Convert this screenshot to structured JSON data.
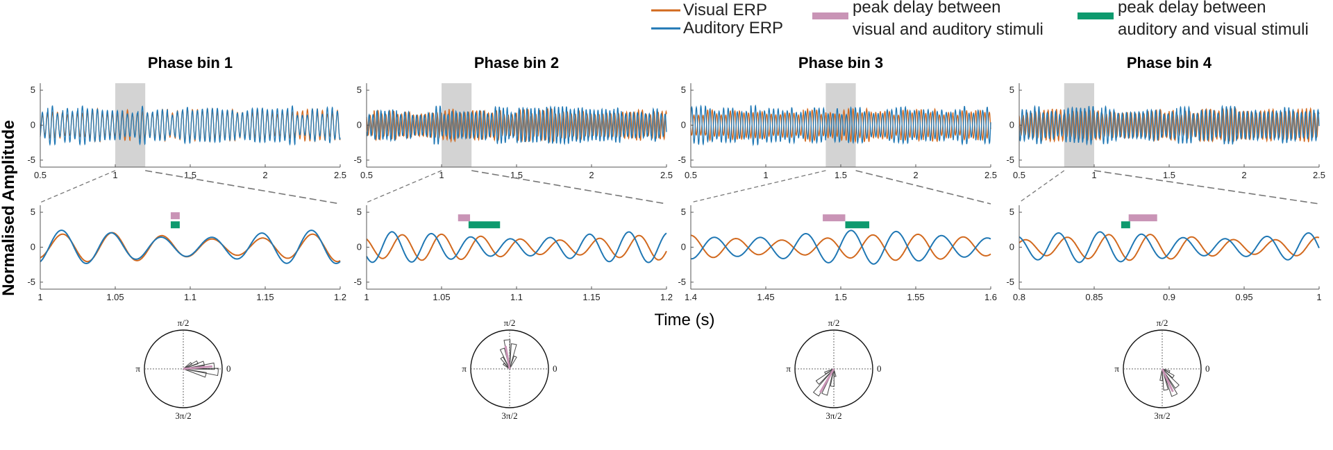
{
  "legend": {
    "visual": "Visual ERP",
    "auditory": "Auditory ERP",
    "pink_line1": "peak delay between",
    "pink_line2": "visual and auditory stimuli",
    "green_line1": "peak delay between",
    "green_line2": "auditory and visual stimuli"
  },
  "ylabel": "Normalised Amplitude",
  "xlabel": "Time (s)",
  "colors": {
    "visual": "#D2691E",
    "auditory": "#1F77B4",
    "pink": "#C994B6",
    "green": "#0E9A6E",
    "shade": "#D3D3D3",
    "zoom_line": "#777777"
  },
  "chart_data": [
    {
      "type": "line",
      "title": "Phase bin 1",
      "top": {
        "xlim": [
          0.5,
          2.5
        ],
        "ylim": [
          -6,
          6
        ],
        "xticks": [
          "0.5",
          "1",
          "1.5",
          "2",
          "2.5"
        ],
        "xtick_values": [
          0.5,
          1,
          1.5,
          2,
          2.5
        ],
        "yticks": [
          "5",
          "0",
          "-5"
        ],
        "ytick_values": [
          5,
          0,
          -5
        ],
        "highlight_range": [
          1.0,
          1.2
        ]
      },
      "bottom": {
        "xlim": [
          1.0,
          1.2
        ],
        "ylim": [
          -6,
          6
        ],
        "xticks": [
          "1",
          "1.05",
          "1.1",
          "1.15",
          "1.2"
        ],
        "xtick_values": [
          1,
          1.05,
          1.1,
          1.15,
          1.2
        ],
        "yticks": [
          "5",
          "0",
          "-5"
        ],
        "ytick_values": [
          5,
          0,
          -5
        ],
        "freq_hz": 30,
        "series": [
          {
            "name": "Visual ERP",
            "amplitude": 1.9,
            "phase_rad": -1.2
          },
          {
            "name": "Auditory ERP",
            "amplitude": 2.2,
            "phase_rad": -1.1
          }
        ],
        "peak_delay_visual_auditory": {
          "start": 1.087,
          "end": 1.093,
          "y": 4.5
        },
        "peak_delay_auditory_visual": {
          "start": 1.087,
          "end": 1.093,
          "y": 3.2
        }
      },
      "polar": {
        "tick_labels": [
          "π/2",
          "π",
          "0",
          "3π/2"
        ],
        "rose_angles_deg": [
          -15,
          -5,
          5,
          15,
          25,
          35
        ],
        "rose_lengths": [
          0.6,
          0.9,
          0.8,
          0.55,
          0.4,
          0.25
        ],
        "mean_angle_deg": 5,
        "mean_length": 0.75
      }
    },
    {
      "type": "line",
      "title": "Phase bin 2",
      "top": {
        "xlim": [
          0.5,
          2.5
        ],
        "ylim": [
          -6,
          6
        ],
        "xticks": [
          "0.5",
          "1",
          "1.5",
          "2",
          "2.5"
        ],
        "xtick_values": [
          0.5,
          1,
          1.5,
          2,
          2.5
        ],
        "yticks": [
          "5",
          "0",
          "-5"
        ],
        "ytick_values": [
          5,
          0,
          -5
        ],
        "highlight_range": [
          1.0,
          1.2
        ]
      },
      "bottom": {
        "xlim": [
          1.0,
          1.2
        ],
        "ylim": [
          -6,
          6
        ],
        "xticks": [
          "1",
          "1.05",
          "1.1",
          "1.15",
          "1.2"
        ],
        "xtick_values": [
          1,
          1.05,
          1.1,
          1.15,
          1.2
        ],
        "yticks": [
          "5",
          "0",
          "-5"
        ],
        "ytick_values": [
          5,
          0,
          -5
        ],
        "freq_hz": 38,
        "series": [
          {
            "name": "Visual ERP",
            "amplitude": 1.7,
            "phase_rad": 2.2
          },
          {
            "name": "Auditory ERP",
            "amplitude": 2.0,
            "phase_rad": 3.8
          }
        ],
        "peak_delay_visual_auditory": {
          "start": 1.061,
          "end": 1.069,
          "y": 4.2
        },
        "peak_delay_auditory_visual": {
          "start": 1.068,
          "end": 1.089,
          "y": 3.2
        }
      },
      "polar": {
        "tick_labels": [
          "π/2",
          "π",
          "0",
          "3π/2"
        ],
        "rose_angles_deg": [
          65,
          80,
          95,
          110,
          125,
          140
        ],
        "rose_lengths": [
          0.35,
          0.65,
          0.75,
          0.55,
          0.35,
          0.2
        ],
        "mean_angle_deg": 100,
        "mean_length": 0.6
      }
    },
    {
      "type": "line",
      "title": "Phase bin 3",
      "top": {
        "xlim": [
          0.5,
          2.5
        ],
        "ylim": [
          -6,
          6
        ],
        "xticks": [
          "0.5",
          "1",
          "1.5",
          "2",
          "2.5"
        ],
        "xtick_values": [
          0.5,
          1,
          1.5,
          2,
          2.5
        ],
        "yticks": [
          "5",
          "0",
          "-5"
        ],
        "ytick_values": [
          5,
          0,
          -5
        ],
        "highlight_range": [
          1.4,
          1.6
        ]
      },
      "bottom": {
        "xlim": [
          1.4,
          1.6
        ],
        "ylim": [
          -6,
          6
        ],
        "xticks": [
          "1.4",
          "1.45",
          "1.5",
          "1.55",
          "1.6"
        ],
        "xtick_values": [
          1.4,
          1.45,
          1.5,
          1.55,
          1.6
        ],
        "yticks": [
          "5",
          "0",
          "-5"
        ],
        "ytick_values": [
          5,
          0,
          -5
        ],
        "freq_hz": 33,
        "series": [
          {
            "name": "Visual ERP",
            "amplitude": 1.7,
            "phase_rad": 0.3
          },
          {
            "name": "Auditory ERP",
            "amplitude": 2.2,
            "phase_rad": 3.3
          }
        ],
        "peak_delay_visual_auditory": {
          "start": 1.488,
          "end": 1.503,
          "y": 4.2
        },
        "peak_delay_auditory_visual": {
          "start": 1.503,
          "end": 1.519,
          "y": 3.2
        }
      },
      "polar": {
        "tick_labels": [
          "π/2",
          "π",
          "0",
          "3π/2"
        ],
        "rose_angles_deg": [
          205,
          220,
          235,
          250,
          265,
          280
        ],
        "rose_lengths": [
          0.25,
          0.55,
          0.8,
          0.7,
          0.45,
          0.2
        ],
        "mean_angle_deg": 240,
        "mean_length": 0.7
      }
    },
    {
      "type": "line",
      "title": "Phase bin 4",
      "top": {
        "xlim": [
          0.5,
          2.5
        ],
        "ylim": [
          -6,
          6
        ],
        "xticks": [
          "0.5",
          "1",
          "1.5",
          "2",
          "2.5"
        ],
        "xtick_values": [
          0.5,
          1,
          1.5,
          2,
          2.5
        ],
        "yticks": [
          "5",
          "0",
          "-5"
        ],
        "ytick_values": [
          5,
          0,
          -5
        ],
        "highlight_range": [
          0.8,
          1.0
        ]
      },
      "bottom": {
        "xlim": [
          0.8,
          1.0
        ],
        "ylim": [
          -6,
          6
        ],
        "xticks": [
          "0.8",
          "0.85",
          "0.9",
          "0.95",
          "1"
        ],
        "xtick_values": [
          0.8,
          0.85,
          0.9,
          0.95,
          1
        ],
        "yticks": [
          "5",
          "0",
          "-5"
        ],
        "ytick_values": [
          5,
          0,
          -5
        ],
        "freq_hz": 36,
        "series": [
          {
            "name": "Visual ERP",
            "amplitude": 1.7,
            "phase_rad": 1.9
          },
          {
            "name": "Auditory ERP",
            "amplitude": 2.0,
            "phase_rad": 3.2
          }
        ],
        "peak_delay_visual_auditory": {
          "start": 0.873,
          "end": 0.892,
          "y": 4.2
        },
        "peak_delay_auditory_visual": {
          "start": 0.868,
          "end": 0.874,
          "y": 3.2
        }
      },
      "polar": {
        "tick_labels": [
          "π/2",
          "π",
          "0",
          "3π/2"
        ],
        "rose_angles_deg": [
          -80,
          -65,
          -50,
          -35,
          -20,
          -95
        ],
        "rose_lengths": [
          0.55,
          0.75,
          0.6,
          0.35,
          0.2,
          0.3
        ],
        "mean_angle_deg": -65,
        "mean_length": 0.65
      }
    }
  ]
}
